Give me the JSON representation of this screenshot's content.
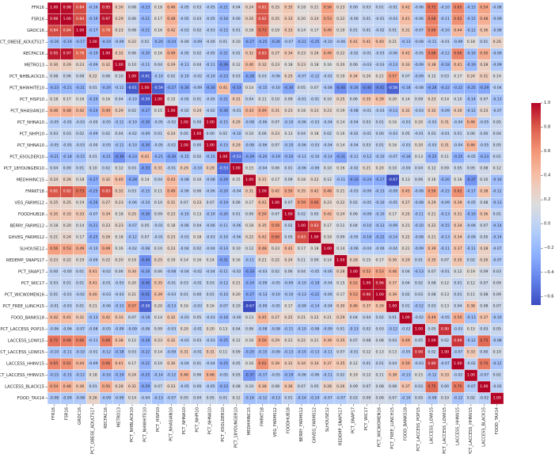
{
  "chart_data": {
    "type": "heatmap",
    "title": "",
    "colormap": "coolwarm",
    "vmin": -0.67,
    "vmax": 1.0,
    "annotated": true,
    "symmetric": true,
    "labels": [
      "FFR16",
      "FSR16",
      "GROC16",
      "PCT_OBESE_ADULTS17",
      "RECFAC16",
      "METRO13",
      "PCT_NHBLACK10",
      "PCT_NHWHITE10",
      "PCT_HISP10",
      "PCT_NHASIAN10",
      "PCT_NHNA10",
      "PCT_NHPI10",
      "PCT_NHNA10",
      "PCT_65OLDER10",
      "PCT_18YOUNGER10",
      "MEDHHINC15",
      "FMRKT18",
      "VEG_FARMS12",
      "FOODHUB18",
      "BERRY_FARMS12",
      "GHVEG_FARMS12",
      "SLHOUSE12",
      "REDEMP_SNAPS17",
      "PCT_SNAP17",
      "PCT_WIC17",
      "PCT_WICWOMEN16",
      "PCT_FREE_LUNCH15",
      "FOOD_BANKS18",
      "PCT_LACCESS_POP15",
      "LACCESS_LOWI15",
      "PCT_LACCESS_LOWI15",
      "LACCESS_HHNV15",
      "PCT_LACCESS_HHNV15",
      "LACCESS_BLACK15",
      "FOOD_TAX14"
    ],
    "lower_triangle": [
      [
        1.0
      ],
      [
        0.98,
        1.0
      ],
      [
        0.84,
        0.84,
        1.0
      ],
      [
        -0.16,
        -0.19,
        -0.17,
        1.0
      ],
      [
        0.95,
        0.97,
        0.78,
        -0.19,
        1.0
      ],
      [
        0.3,
        0.29,
        0.23,
        -0.09,
        0.32,
        1.0
      ],
      [
        0.08,
        0.06,
        0.08,
        0.22,
        0.06,
        0.1,
        1.0
      ],
      [
        -0.23,
        -0.21,
        -0.21,
        0.01,
        -0.2,
        -0.11,
        -0.61,
        1.0
      ],
      [
        0.18,
        0.17,
        0.16,
        -0.2,
        0.16,
        0.04,
        -0.1,
        -0.59,
        1.0
      ],
      [
        0.46,
        0.48,
        0.42,
        -0.24,
        0.49,
        0.29,
        0.02,
        -0.27,
        0.15,
        1.0
      ],
      [
        -0.05,
        -0.05,
        -0.03,
        -0.0,
        -0.05,
        -0.11,
        -0.1,
        -0.3,
        -0.05,
        -0.02,
        1.0
      ],
      [
        0.03,
        0.03,
        0.02,
        -0.09,
        0.02,
        0.04,
        -0.02,
        -0.09,
        0.01,
        0.24,
        0.0,
        1.0
      ],
      [
        -0.05,
        -0.05,
        -0.03,
        -0.0,
        -0.05,
        -0.11,
        -0.1,
        -0.3,
        -0.05,
        -0.02,
        1.0,
        0.0,
        1.0
      ],
      [
        -0.21,
        -0.18,
        -0.15,
        0.01,
        -0.21,
        -0.39,
        -0.23,
        0.41,
        -0.21,
        -0.3,
        -0.15,
        0.02,
        -0.15,
        1.0
      ],
      [
        0.04,
        0.0,
        0.01,
        0.1,
        0.02,
        0.12,
        0.03,
        -0.33,
        0.31,
        -0.01,
        0.29,
        -0.1,
        0.29,
        -0.53,
        1.0
      ],
      [
        0.24,
        0.26,
        0.18,
        -0.27,
        0.32,
        0.4,
        -0.28,
        0.14,
        0.04,
        0.43,
        -0.08,
        0.1,
        -0.08,
        -0.29,
        0.15,
        1.0
      ],
      [
        0.81,
        0.82,
        0.73,
        -0.25,
        0.83,
        0.32,
        0.03,
        -0.15,
        0.11,
        0.49,
        -0.06,
        0.06,
        -0.06,
        -0.2,
        -0.04,
        0.31,
        1.0
      ],
      [
        0.25,
        0.25,
        0.19,
        -0.26,
        0.27,
        0.23,
        -0.06,
        -0.1,
        0.1,
        0.31,
        0.07,
        0.23,
        0.07,
        -0.19,
        0.06,
        0.17,
        0.42,
        1.0
      ],
      [
        0.35,
        0.33,
        0.33,
        -0.07,
        0.34,
        0.18,
        0.25,
        -0.3,
        0.09,
        0.23,
        -0.1,
        0.13,
        -0.1,
        -0.2,
        0.01,
        0.09,
        0.5,
        0.07,
        1.0
      ],
      [
        0.18,
        0.2,
        0.14,
        -0.21,
        0.23,
        0.23,
        -0.07,
        0.05,
        -0.01,
        0.18,
        -0.06,
        0.04,
        -0.06,
        -0.11,
        -0.06,
        0.18,
        0.35,
        0.59,
        0.02,
        1.0
      ],
      [
        0.21,
        0.24,
        0.17,
        -0.25,
        0.26,
        0.18,
        -0.12,
        0.07,
        -0.01,
        0.23,
        -0.03,
        0.18,
        -0.03,
        -0.1,
        -0.06,
        0.22,
        0.42,
        0.66,
        0.05,
        0.83,
        1.0
      ],
      [
        0.56,
        0.53,
        0.49,
        -0.1,
        0.49,
        0.16,
        -0.02,
        -0.08,
        0.1,
        0.23,
        -0.04,
        0.02,
        -0.04,
        -0.14,
        0.1,
        0.12,
        0.48,
        0.23,
        0.42,
        0.17,
        0.18,
        1.0
      ],
      [
        0.23,
        0.22,
        0.19,
        -0.06,
        0.22,
        0.2,
        0.19,
        -0.4,
        0.25,
        0.19,
        0.14,
        0.16,
        0.14,
        -0.31,
        0.16,
        -0.11,
        0.21,
        0.22,
        0.24,
        0.11,
        0.09,
        0.14,
        1.0
      ],
      [
        0.0,
        -0.0,
        0.01,
        0.41,
        -0.02,
        0.06,
        0.34,
        -0.26,
        0.06,
        -0.08,
        -0.04,
        -0.02,
        -0.04,
        -0.11,
        -0.02,
        -0.33,
        -0.03,
        0.02,
        0.06,
        0.04,
        -0.05,
        -0.06,
        0.28,
        1.0
      ],
      [
        0.03,
        0.01,
        0.01,
        0.41,
        -0.01,
        -0.03,
        0.2,
        -0.4,
        0.35,
        -0.01,
        0.03,
        -0.01,
        0.03,
        -0.12,
        0.21,
        -0.24,
        -0.09,
        -0.05,
        -0.09,
        -0.1,
        -0.18,
        -0.04,
        0.15,
        0.52,
        1.0
      ],
      [
        0.01,
        -0.01,
        -0.02,
        0.4,
        -0.03,
        -0.03,
        0.21,
        -0.41,
        0.39,
        -0.03,
        0.01,
        0.0,
        0.01,
        -0.1,
        0.2,
        -0.27,
        -0.13,
        -0.1,
        -0.1,
        -0.13,
        -0.22,
        -0.06,
        0.17,
        0.53,
        0.96,
        1.0
      ],
      [
        -0.01,
        -0.03,
        0.01,
        0.21,
        -0.06,
        -0.13,
        0.57,
        -0.58,
        0.2,
        -0.13,
        0.16,
        -0.03,
        0.16,
        -0.07,
        0.1,
        -0.67,
        -0.09,
        -0.05,
        0.17,
        -0.09,
        -0.14,
        -0.04,
        0.3,
        0.46,
        0.37,
        0.39,
        1.0
      ],
      [
        0.42,
        0.41,
        0.31,
        -0.13,
        0.42,
        0.33,
        0.07,
        -0.18,
        0.14,
        0.32,
        -0.03,
        0.05,
        -0.03,
        -0.18,
        -0.0,
        0.13,
        0.45,
        0.27,
        0.25,
        0.21,
        0.22,
        0.21,
        0.29,
        0.04,
        0.04,
        0.02,
        0.01,
        1.0
      ],
      [
        -0.06,
        -0.06,
        -0.07,
        -0.08,
        -0.05,
        -0.09,
        -0.09,
        -0.08,
        0.09,
        -0.03,
        0.2,
        -0.01,
        0.2,
        0.13,
        0.04,
        0.06,
        -0.08,
        -0.08,
        -0.11,
        -0.1,
        -0.08,
        -0.09,
        0.01,
        -0.13,
        0.02,
        0.03,
        -0.12,
        -0.02,
        1.0
      ],
      [
        0.72,
        0.68,
        0.66,
        -0.11,
        0.68,
        0.38,
        0.12,
        -0.28,
        0.23,
        0.32,
        -0.03,
        0.03,
        -0.03,
        -0.25,
        0.12,
        0.16,
        0.56,
        0.29,
        0.21,
        0.22,
        0.21,
        0.39,
        0.35,
        0.07,
        0.08,
        0.08,
        0.03,
        0.49,
        0.05,
        1.0
      ],
      [
        -0.1,
        -0.11,
        -0.1,
        -0.01,
        -0.12,
        -0.18,
        0.03,
        -0.22,
        0.14,
        -0.09,
        0.31,
        -0.01,
        0.31,
        0.11,
        0.09,
        -0.2,
        -0.15,
        -0.09,
        -0.13,
        -0.15,
        -0.13,
        -0.11,
        0.07,
        -0.01,
        0.12,
        0.13,
        0.13,
        -0.05,
        0.9,
        0.02,
        1.0
      ],
      [
        0.65,
        0.62,
        0.44,
        -0.09,
        0.66,
        0.41,
        0.17,
        -0.22,
        0.1,
        0.3,
        -0.04,
        0.01,
        -0.04,
        -0.25,
        0.05,
        0.16,
        0.62,
        0.39,
        0.31,
        0.34,
        0.34,
        0.37,
        0.35,
        0.12,
        0.01,
        0.01,
        0.04,
        0.5,
        -0.03,
        0.89,
        -0.07,
        1.0
      ],
      [
        -0.15,
        -0.15,
        -0.12,
        0.18,
        -0.16,
        -0.19,
        0.24,
        -0.25,
        -0.14,
        -0.12,
        0.46,
        0.06,
        0.46,
        -0.05,
        0.05,
        -0.37,
        -0.17,
        -0.05,
        -0.19,
        -0.06,
        -0.06,
        -0.11,
        0.02,
        0.19,
        0.12,
        0.11,
        0.38,
        -0.13,
        0.15,
        -0.12,
        0.33,
        -0.02,
        1.0
      ],
      [
        0.54,
        0.48,
        0.36,
        0.01,
        0.5,
        0.28,
        0.31,
        -0.29,
        0.07,
        0.23,
        -0.05,
        0.0,
        -0.05,
        -0.23,
        0.08,
        0.1,
        0.38,
        0.08,
        0.36,
        0.07,
        0.05,
        0.28,
        0.26,
        0.09,
        0.07,
        0.08,
        0.08,
        0.37,
        0.03,
        0.75,
        0.0,
        0.7,
        -0.07,
        1.0
      ],
      [
        -0.08,
        -0.09,
        -0.08,
        0.26,
        -0.09,
        -0.09,
        0.14,
        -0.04,
        -0.13,
        -0.07,
        0.05,
        0.04,
        0.05,
        0.01,
        0.12,
        -0.16,
        -0.12,
        -0.13,
        0.01,
        -0.14,
        -0.14,
        -0.07,
        -0.07,
        0.03,
        0.09,
        0.09,
        0.07,
        -0.1,
        0.05,
        -0.08,
        0.1,
        -0.12,
        0.02,
        -0.02,
        1.0
      ]
    ],
    "colorbar": {
      "ticks": [
        1.0,
        0.8,
        0.6,
        0.4,
        0.2,
        0.0,
        -0.2,
        -0.4,
        -0.6
      ],
      "tick_labels": [
        "1.0",
        "0.8",
        "0.6",
        "0.4",
        "0.2",
        "0.0",
        "−0.2",
        "−0.4",
        "−0.6"
      ]
    }
  }
}
